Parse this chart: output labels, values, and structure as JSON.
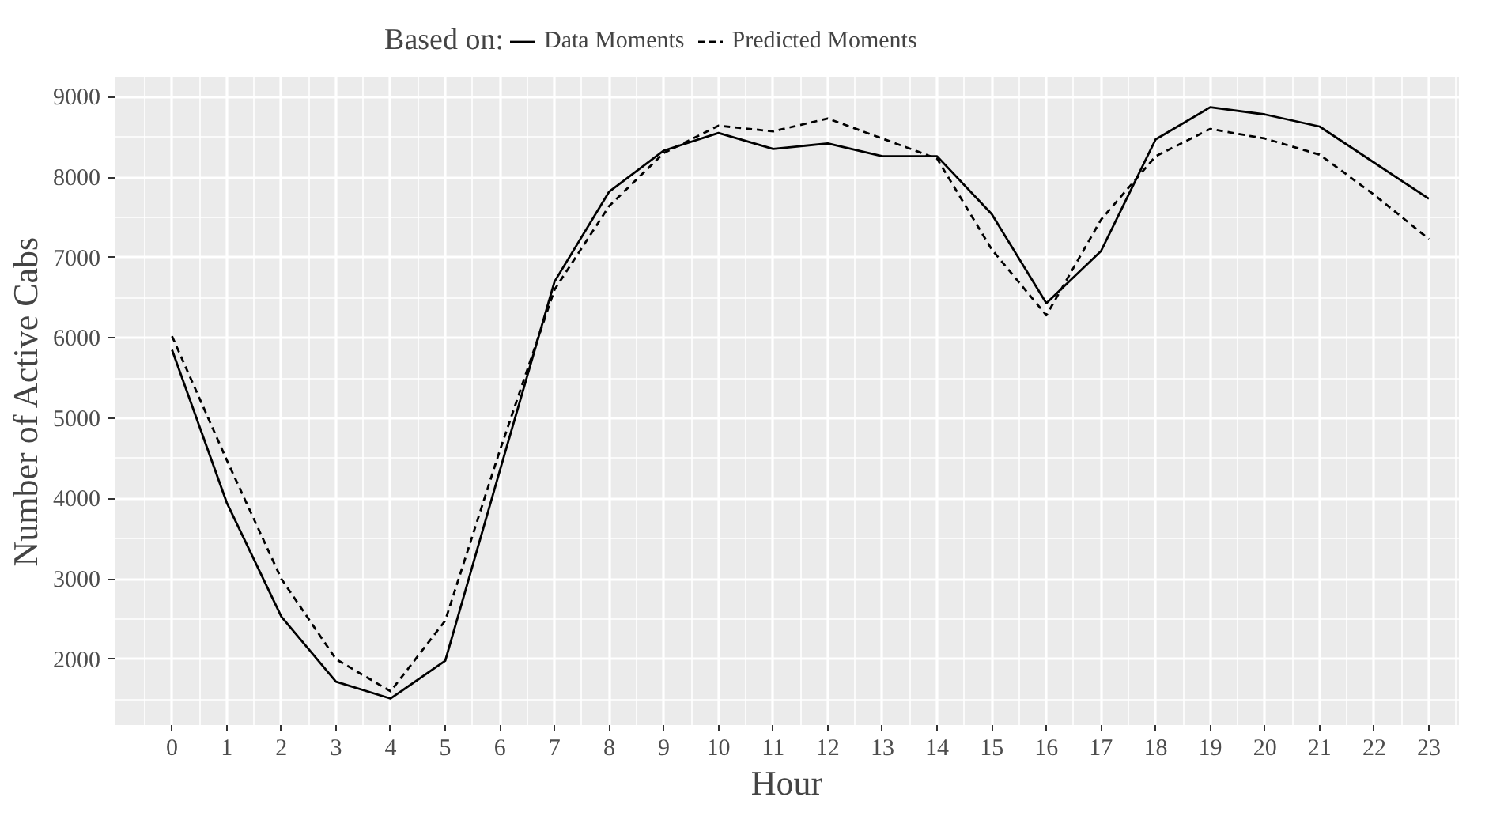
{
  "chart_data": {
    "type": "line",
    "xlabel": "Hour",
    "ylabel": "Number of Active Cabs",
    "legend_title": "Based on:",
    "legend": "top",
    "x": [
      0,
      1,
      2,
      3,
      4,
      5,
      6,
      7,
      8,
      9,
      10,
      11,
      12,
      13,
      14,
      15,
      16,
      17,
      18,
      19,
      20,
      21,
      22,
      23
    ],
    "series": [
      {
        "name": "Data Moments",
        "color": "#000000",
        "line_style": "solid",
        "values": [
          5850,
          3950,
          2530,
          1720,
          1510,
          1980,
          4350,
          6700,
          7820,
          8330,
          8550,
          8350,
          8420,
          8260,
          8260,
          7540,
          6430,
          7080,
          8470,
          8870,
          8780,
          8630,
          8180,
          7730
        ]
      },
      {
        "name": "Predicted Moments",
        "color": "#000000",
        "line_style": "dashed",
        "values": [
          6020,
          4480,
          3000,
          2000,
          1600,
          2480,
          4600,
          6600,
          7640,
          8300,
          8640,
          8570,
          8730,
          8480,
          8230,
          7100,
          6280,
          7470,
          8260,
          8600,
          8480,
          8280,
          7780,
          7230
        ]
      }
    ],
    "xlim": [
      -1.05,
      23.55
    ],
    "ylim": [
      1180,
      9250
    ],
    "xticks": [
      0,
      1,
      2,
      3,
      4,
      5,
      6,
      7,
      8,
      9,
      10,
      11,
      12,
      13,
      14,
      15,
      16,
      17,
      18,
      19,
      20,
      21,
      22,
      23
    ],
    "yticks": [
      2000,
      3000,
      4000,
      5000,
      6000,
      7000,
      8000,
      9000
    ],
    "grid": true
  }
}
